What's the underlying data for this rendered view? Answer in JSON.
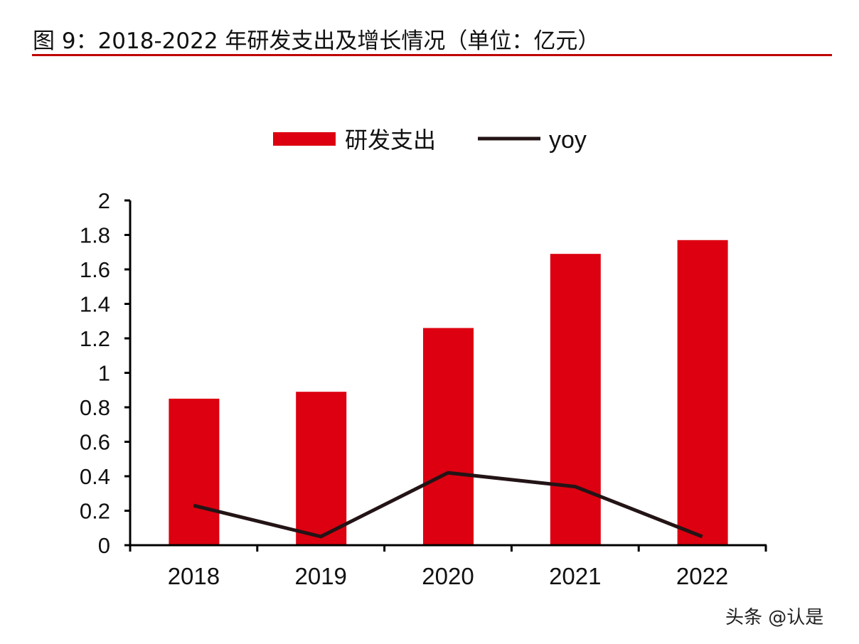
{
  "title": "图 9：2018-2022 年研发支出及增长情况（单位：亿元）",
  "watermark": "头条 @认是",
  "colors": {
    "bar": "#dc0010",
    "line": "#231416",
    "rule": "#c00000"
  },
  "chart_data": {
    "type": "bar",
    "categories": [
      "2018",
      "2019",
      "2020",
      "2021",
      "2022"
    ],
    "series": [
      {
        "name": "研发支出",
        "type": "bar",
        "values": [
          0.85,
          0.89,
          1.26,
          1.69,
          1.77
        ]
      },
      {
        "name": "yoy",
        "type": "line",
        "values": [
          0.23,
          0.05,
          0.42,
          0.34,
          0.05
        ]
      }
    ],
    "ylim": [
      0,
      2
    ],
    "yticks": [
      "0",
      "0.2",
      "0.4",
      "0.6",
      "0.8",
      "1",
      "1.2",
      "1.4",
      "1.6",
      "1.8",
      "2"
    ],
    "legend": "top",
    "grid": false
  }
}
